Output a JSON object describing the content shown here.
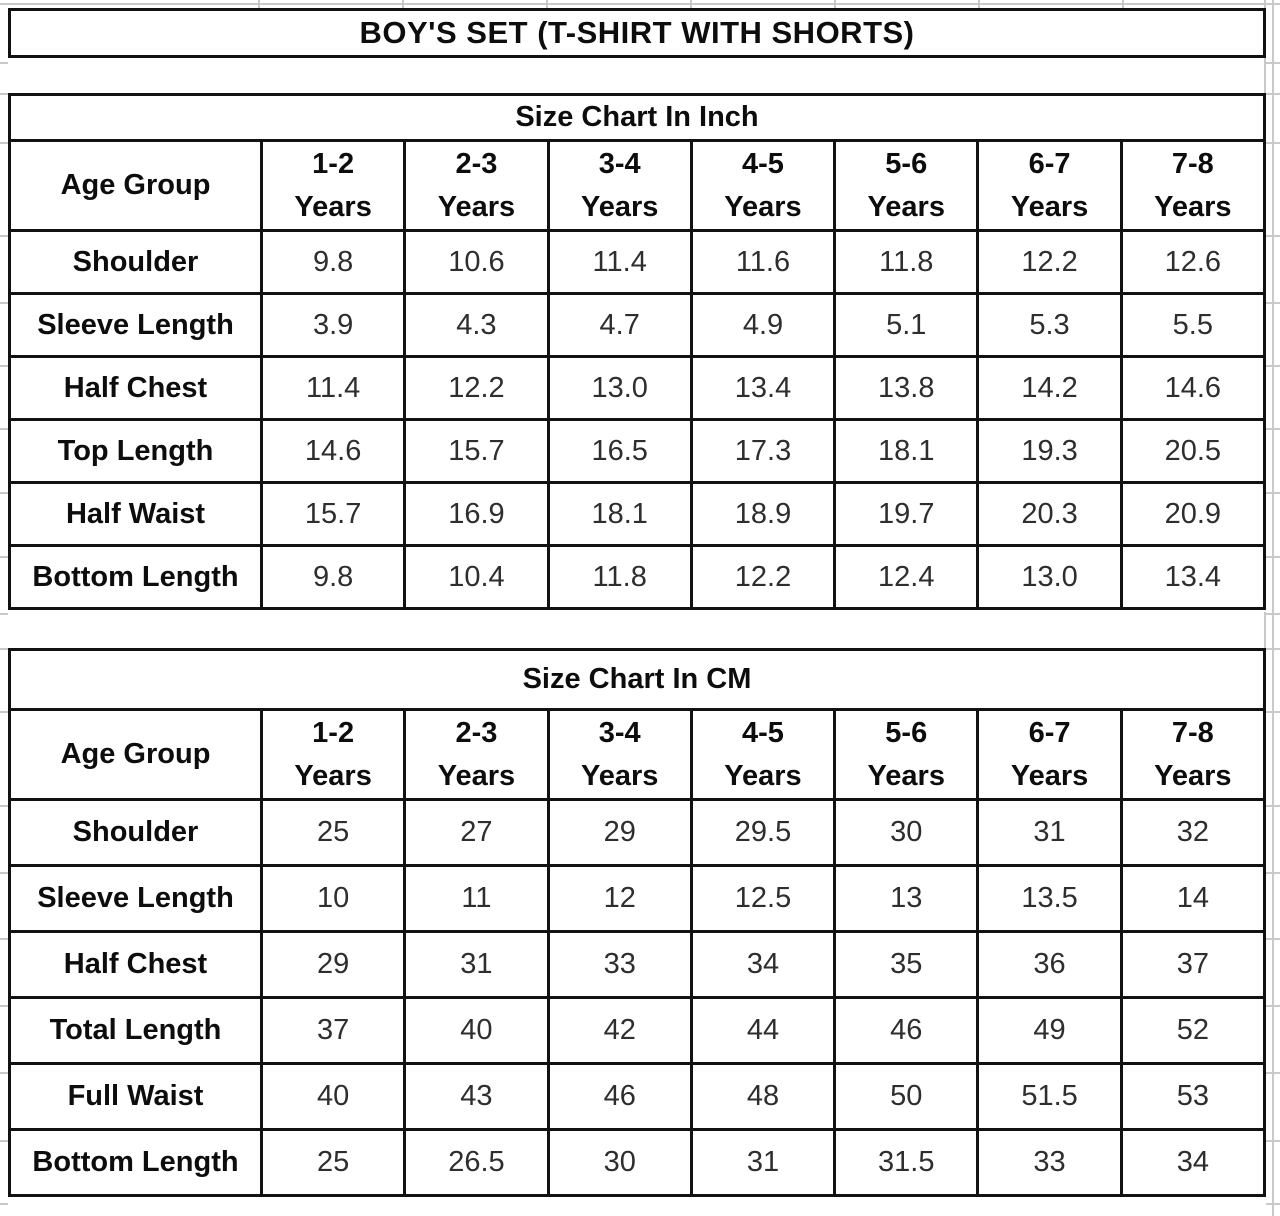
{
  "page_title": "BOY'S SET (T-SHIRT WITH SHORTS)",
  "colors": {
    "background": "#ffffff",
    "table_border": "#121212",
    "label_text": "#0d0d0d",
    "value_text": "#2e2e2e",
    "grid_line": "#c9c9c9"
  },
  "tables": [
    {
      "title": "Size Chart In Inch",
      "corner": "Age Group",
      "col_headers": [
        {
          "range": "1-2",
          "unit": "Years"
        },
        {
          "range": "2-3",
          "unit": "Years"
        },
        {
          "range": "3-4",
          "unit": "Years"
        },
        {
          "range": "4-5",
          "unit": "Years"
        },
        {
          "range": "5-6",
          "unit": "Years"
        },
        {
          "range": "6-7",
          "unit": "Years"
        },
        {
          "range": "7-8",
          "unit": "Years"
        }
      ],
      "rows": [
        {
          "label": "Shoulder",
          "values": [
            "9.8",
            "10.6",
            "11.4",
            "11.6",
            "11.8",
            "12.2",
            "12.6"
          ]
        },
        {
          "label": "Sleeve Length",
          "values": [
            "3.9",
            "4.3",
            "4.7",
            "4.9",
            "5.1",
            "5.3",
            "5.5"
          ]
        },
        {
          "label": "Half Chest",
          "values": [
            "11.4",
            "12.2",
            "13.0",
            "13.4",
            "13.8",
            "14.2",
            "14.6"
          ]
        },
        {
          "label": "Top Length",
          "values": [
            "14.6",
            "15.7",
            "16.5",
            "17.3",
            "18.1",
            "19.3",
            "20.5"
          ]
        },
        {
          "label": "Half Waist",
          "values": [
            "15.7",
            "16.9",
            "18.1",
            "18.9",
            "19.7",
            "20.3",
            "20.9"
          ]
        },
        {
          "label": "Bottom Length",
          "values": [
            "9.8",
            "10.4",
            "11.8",
            "12.2",
            "12.4",
            "13.0",
            "13.4"
          ]
        }
      ]
    },
    {
      "title": "Size Chart In CM",
      "corner": "Age Group",
      "col_headers": [
        {
          "range": "1-2",
          "unit": "Years"
        },
        {
          "range": "2-3",
          "unit": "Years"
        },
        {
          "range": "3-4",
          "unit": "Years"
        },
        {
          "range": "4-5",
          "unit": "Years"
        },
        {
          "range": "5-6",
          "unit": "Years"
        },
        {
          "range": "6-7",
          "unit": "Years"
        },
        {
          "range": "7-8",
          "unit": "Years"
        }
      ],
      "rows": [
        {
          "label": "Shoulder",
          "values": [
            "25",
            "27",
            "29",
            "29.5",
            "30",
            "31",
            "32"
          ]
        },
        {
          "label": "Sleeve Length",
          "values": [
            "10",
            "11",
            "12",
            "12.5",
            "13",
            "13.5",
            "14"
          ]
        },
        {
          "label": "Half Chest",
          "values": [
            "29",
            "31",
            "33",
            "34",
            "35",
            "36",
            "37"
          ]
        },
        {
          "label": "Total Length",
          "values": [
            "37",
            "40",
            "42",
            "44",
            "46",
            "49",
            "52"
          ]
        },
        {
          "label": "Full Waist",
          "values": [
            "40",
            "43",
            "46",
            "48",
            "50",
            "51.5",
            "53"
          ]
        },
        {
          "label": "Bottom Length",
          "values": [
            "25",
            "26.5",
            "30",
            "31",
            "31.5",
            "33",
            "34"
          ]
        }
      ]
    }
  ]
}
